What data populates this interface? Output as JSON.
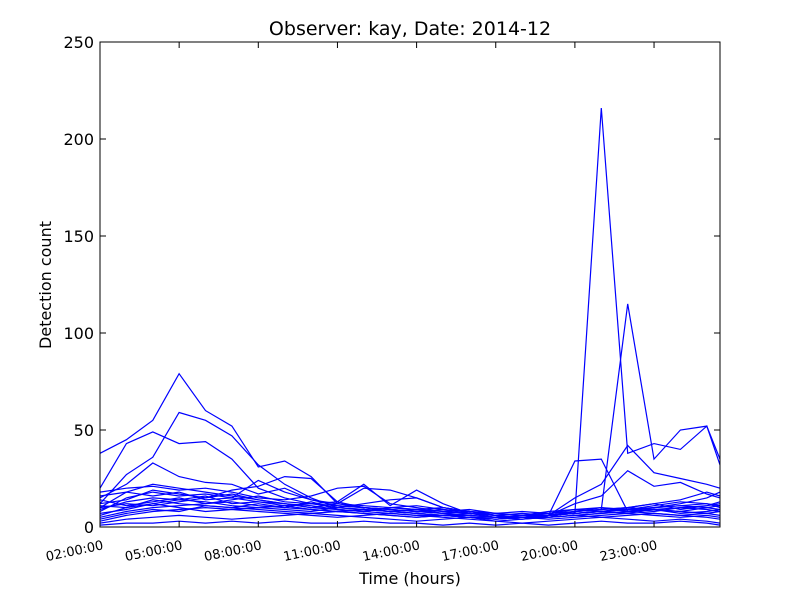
{
  "chart_data": {
    "type": "line",
    "title": "Observer: kay, Date: 2014-12",
    "xlabel": "Time (hours)",
    "ylabel": "Detection count",
    "ylim": [
      0,
      250
    ],
    "yticks": [
      "0",
      "50",
      "100",
      "150",
      "200",
      "250"
    ],
    "xlim": [
      2,
      25.5
    ],
    "xticks": [
      {
        "x": 2,
        "label": "02:00:00"
      },
      {
        "x": 5,
        "label": "05:00:00"
      },
      {
        "x": 8,
        "label": "08:00:00"
      },
      {
        "x": 11,
        "label": "11:00:00"
      },
      {
        "x": 14,
        "label": "14:00:00"
      },
      {
        "x": 17,
        "label": "17:00:00"
      },
      {
        "x": 20,
        "label": "20:00:00"
      },
      {
        "x": 23,
        "label": "23:00:00"
      }
    ],
    "grid": false,
    "line_color": "#0000ff",
    "x": [
      2,
      3,
      4,
      5,
      6,
      7,
      8,
      9,
      10,
      11,
      12,
      13,
      14,
      15,
      16,
      17,
      18,
      19,
      20,
      21,
      22,
      23,
      24,
      25,
      25.5
    ],
    "series": [
      {
        "values": [
          38,
          45,
          55,
          79,
          60,
          52,
          31,
          34,
          26,
          12,
          10,
          8,
          9,
          7,
          6,
          5,
          4,
          6,
          34,
          35,
          8,
          10,
          12,
          15,
          18
        ]
      },
      {
        "values": [
          20,
          43,
          49,
          43,
          44,
          35,
          20,
          15,
          12,
          10,
          9,
          8,
          7,
          6,
          5,
          4,
          5,
          6,
          7,
          216,
          38,
          43,
          40,
          52,
          35
        ]
      },
      {
        "values": [
          12,
          27,
          36,
          59,
          55,
          47,
          32,
          22,
          15,
          10,
          9,
          8,
          7,
          6,
          5,
          4,
          5,
          6,
          8,
          9,
          115,
          35,
          50,
          52,
          32
        ]
      },
      {
        "values": [
          15,
          22,
          33,
          26,
          23,
          22,
          17,
          20,
          14,
          11,
          10,
          9,
          8,
          7,
          6,
          5,
          6,
          6,
          15,
          22,
          42,
          28,
          25,
          22,
          20
        ]
      },
      {
        "values": [
          10,
          18,
          22,
          20,
          18,
          16,
          14,
          12,
          10,
          9,
          8,
          7,
          6,
          6,
          5,
          5,
          5,
          6,
          12,
          16,
          29,
          21,
          23,
          17,
          15
        ]
      },
      {
        "values": [
          8,
          15,
          18,
          16,
          17,
          15,
          24,
          18,
          14,
          12,
          20,
          19,
          15,
          10,
          8,
          6,
          5,
          5,
          8,
          9,
          10,
          12,
          14,
          18,
          16
        ]
      },
      {
        "values": [
          12,
          14,
          19,
          17,
          15,
          19,
          21,
          26,
          25,
          13,
          22,
          11,
          19,
          12,
          7,
          6,
          5,
          6,
          7,
          8,
          9,
          11,
          13,
          12,
          11
        ]
      },
      {
        "values": [
          18,
          20,
          21,
          19,
          20,
          18,
          15,
          14,
          16,
          20,
          21,
          12,
          10,
          8,
          9,
          7,
          8,
          7,
          8,
          9,
          10,
          12,
          9,
          11,
          13
        ]
      },
      {
        "values": [
          6,
          10,
          12,
          14,
          13,
          11,
          10,
          9,
          8,
          10,
          12,
          14,
          15,
          10,
          8,
          6,
          5,
          6,
          7,
          8,
          9,
          10,
          11,
          10,
          9
        ]
      },
      {
        "values": [
          5,
          8,
          10,
          11,
          12,
          13,
          11,
          10,
          9,
          8,
          7,
          6,
          5,
          6,
          7,
          5,
          4,
          5,
          6,
          7,
          8,
          9,
          8,
          7,
          6
        ]
      },
      {
        "values": [
          3,
          6,
          8,
          9,
          10,
          9,
          8,
          7,
          6,
          5,
          6,
          7,
          6,
          5,
          4,
          3,
          4,
          5,
          6,
          5,
          6,
          7,
          6,
          5,
          4
        ]
      },
      {
        "values": [
          2,
          4,
          5,
          6,
          5,
          4,
          5,
          6,
          7,
          6,
          5,
          4,
          3,
          4,
          5,
          3,
          2,
          3,
          4,
          5,
          4,
          3,
          4,
          3,
          2
        ]
      },
      {
        "values": [
          10,
          12,
          11,
          13,
          15,
          17,
          14,
          12,
          11,
          9,
          8,
          10,
          9,
          8,
          7,
          6,
          7,
          6,
          7,
          8,
          7,
          9,
          10,
          9,
          8
        ]
      },
      {
        "values": [
          14,
          11,
          13,
          15,
          12,
          14,
          16,
          13,
          12,
          11,
          10,
          9,
          8,
          9,
          7,
          6,
          5,
          6,
          8,
          10,
          9,
          8,
          10,
          11,
          12
        ]
      },
      {
        "values": [
          7,
          9,
          12,
          10,
          8,
          9,
          10,
          11,
          9,
          8,
          9,
          8,
          7,
          6,
          6,
          5,
          6,
          5,
          6,
          7,
          8,
          7,
          6,
          7,
          8
        ]
      },
      {
        "values": [
          9,
          13,
          15,
          14,
          16,
          12,
          13,
          12,
          10,
          12,
          11,
          10,
          11,
          9,
          8,
          7,
          6,
          7,
          9,
          10,
          8,
          9,
          8,
          10,
          11
        ]
      },
      {
        "values": [
          4,
          7,
          9,
          8,
          11,
          10,
          9,
          8,
          7,
          8,
          7,
          6,
          5,
          6,
          5,
          4,
          5,
          4,
          5,
          6,
          7,
          6,
          5,
          6,
          5
        ]
      },
      {
        "values": [
          16,
          18,
          16,
          18,
          14,
          15,
          13,
          11,
          12,
          13,
          10,
          9,
          8,
          7,
          8,
          6,
          5,
          6,
          7,
          8,
          9,
          10,
          11,
          12,
          10
        ]
      },
      {
        "values": [
          11,
          10,
          14,
          12,
          11,
          10,
          12,
          10,
          13,
          9,
          8,
          10,
          9,
          10,
          8,
          7,
          6,
          8,
          9,
          8,
          10,
          9,
          7,
          8,
          9
        ]
      },
      {
        "values": [
          1,
          2,
          2,
          3,
          2,
          3,
          2,
          3,
          2,
          2,
          3,
          2,
          2,
          1,
          2,
          1,
          2,
          1,
          2,
          3,
          2,
          2,
          3,
          2,
          1
        ]
      }
    ]
  }
}
